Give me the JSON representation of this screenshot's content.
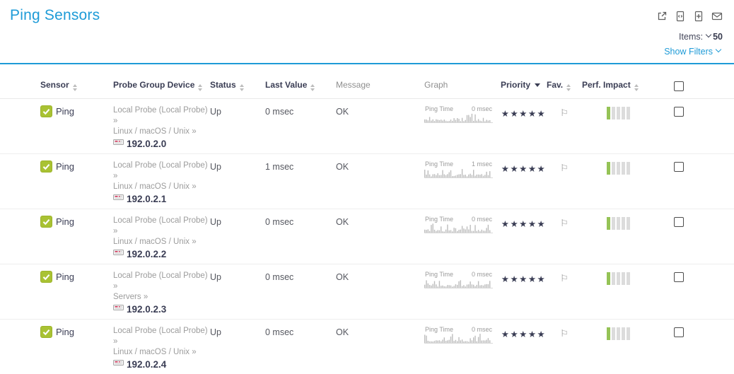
{
  "page": {
    "title": "Ping Sensors",
    "items_label": "Items:",
    "items_value": "50",
    "show_filters_label": "Show Filters"
  },
  "icons": {
    "flag": "⚐",
    "check": "✓",
    "open_new_window": "↗",
    "xml_export": "</>",
    "csv_export": "+",
    "email": "✉"
  },
  "colors": {
    "accent": "#1e9bd7",
    "up_green": "#a9c233",
    "perf_green": "#95c356",
    "header_dark": "#3a3d54",
    "muted_gray": "#9c9c9c"
  },
  "table": {
    "headers": [
      {
        "label": "Sensor",
        "sort": "both"
      },
      {
        "label": "Probe Group Device",
        "sort": "both"
      },
      {
        "label": "Status",
        "sort": "both"
      },
      {
        "label": "Last Value",
        "sort": "both"
      },
      {
        "label": "Message",
        "sort": "none"
      },
      {
        "label": "Graph",
        "sort": "none"
      },
      {
        "label": "Priority",
        "sort": "desc"
      },
      {
        "label": "Fav.",
        "sort": "both"
      },
      {
        "label": "Perf. Impact",
        "sort": "both"
      }
    ],
    "rows": [
      {
        "sensor": "Ping",
        "probe": "Local Probe (Local Probe) »",
        "group": "Linux / macOS / Unix »",
        "device": "192.0.2.0",
        "status": "Up",
        "last_value": "0 msec",
        "message": "OK",
        "graph": {
          "label": "Ping Time",
          "value": "0 msec"
        },
        "priority": 5,
        "priority_stars": "★★★★★",
        "favorite": false,
        "perf_impact": 1,
        "perf_impact_total": 5
      },
      {
        "sensor": "Ping",
        "probe": "Local Probe (Local Probe) »",
        "group": "Linux / macOS / Unix »",
        "device": "192.0.2.1",
        "status": "Up",
        "last_value": "1 msec",
        "message": "OK",
        "graph": {
          "label": "Ping Time",
          "value": "1 msec"
        },
        "priority": 5,
        "priority_stars": "★★★★★",
        "favorite": false,
        "perf_impact": 1,
        "perf_impact_total": 5
      },
      {
        "sensor": "Ping",
        "probe": "Local Probe (Local Probe) »",
        "group": "Linux / macOS / Unix »",
        "device": "192.0.2.2",
        "status": "Up",
        "last_value": "0 msec",
        "message": "OK",
        "graph": {
          "label": "Ping Time",
          "value": "0 msec"
        },
        "priority": 5,
        "priority_stars": "★★★★★",
        "favorite": false,
        "perf_impact": 1,
        "perf_impact_total": 5
      },
      {
        "sensor": "Ping",
        "probe": "Local Probe (Local Probe) »",
        "group": "Servers »",
        "device": "192.0.2.3",
        "status": "Up",
        "last_value": "0 msec",
        "message": "OK",
        "graph": {
          "label": "Ping Time",
          "value": "0 msec"
        },
        "priority": 5,
        "priority_stars": "★★★★★",
        "favorite": false,
        "perf_impact": 1,
        "perf_impact_total": 5
      },
      {
        "sensor": "Ping",
        "probe": "Local Probe (Local Probe) »",
        "group": "Linux / macOS / Unix »",
        "device": "192.0.2.4",
        "status": "Up",
        "last_value": "0 msec",
        "message": "OK",
        "graph": {
          "label": "Ping Time",
          "value": "0 msec"
        },
        "priority": 5,
        "priority_stars": "★★★★★",
        "favorite": false,
        "perf_impact": 1,
        "perf_impact_total": 5
      }
    ]
  }
}
